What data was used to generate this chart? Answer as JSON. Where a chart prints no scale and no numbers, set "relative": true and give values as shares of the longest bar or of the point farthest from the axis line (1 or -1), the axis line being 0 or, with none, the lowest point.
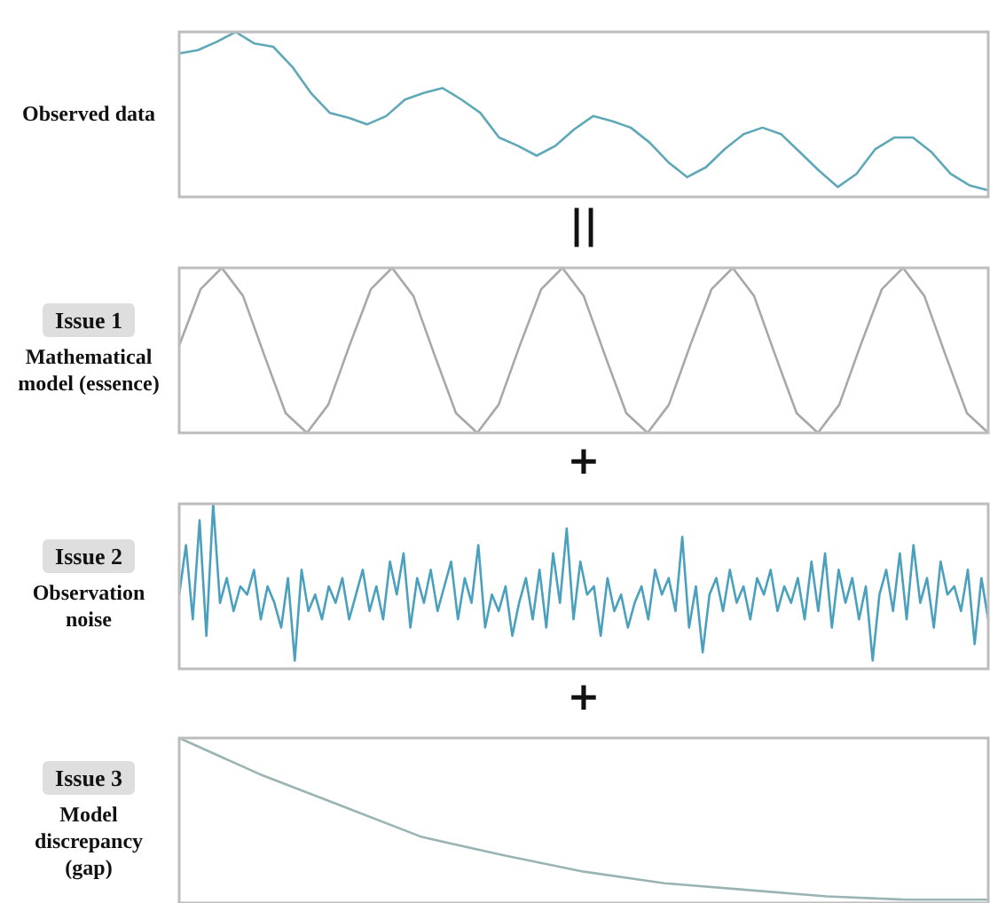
{
  "chart_data": [
    {
      "type": "line",
      "ylabel": "Observed data",
      "relative": true,
      "marker": "none",
      "annotations": [
        "||"
      ],
      "categories": [
        null,
        null,
        null,
        null,
        null,
        null,
        null,
        null,
        null,
        null,
        null,
        null,
        null,
        null,
        null,
        null,
        null,
        null,
        null,
        null,
        null,
        null,
        null,
        null,
        null,
        null,
        null,
        null,
        null,
        null,
        null,
        null,
        null,
        null,
        null,
        null,
        null,
        null,
        null,
        null,
        null,
        null,
        null,
        null
      ],
      "series": [
        {
          "color": "#5fa8b8",
          "values": [
            0.87,
            0.89,
            0.94,
            1,
            0.93,
            0.91,
            0.79,
            0.63,
            0.51,
            0.48,
            0.44,
            0.49,
            0.59,
            0.63,
            0.66,
            0.59,
            0.51,
            0.36,
            0.31,
            0.25,
            0.31,
            0.41,
            0.49,
            0.46,
            0.42,
            0.33,
            0.21,
            0.12,
            0.18,
            0.29,
            0.38,
            0.42,
            0.38,
            0.27,
            0.16,
            0.06,
            0.14,
            0.29,
            0.36,
            0.36,
            0.27,
            0.14,
            0.07,
            0.04
          ]
        }
      ]
    },
    {
      "type": "line",
      "title": "Issue 1",
      "ylabel": "Mathematical model (essence)",
      "relative": true,
      "marker": "none",
      "annotations": [
        "+"
      ],
      "categories": [
        null,
        null,
        null,
        null,
        null,
        null,
        null,
        null,
        null,
        null,
        null,
        null,
        null,
        null,
        null,
        null,
        null,
        null,
        null,
        null,
        null,
        null,
        null,
        null,
        null,
        null,
        null,
        null,
        null,
        null,
        null,
        null,
        null,
        null,
        null,
        null,
        null,
        null,
        null
      ],
      "series": [
        {
          "color": "#a8a8a8",
          "values": [
            0.53,
            0.87,
            1.0,
            0.83,
            0.47,
            0.12,
            0.0,
            0.17,
            0.53,
            0.87,
            1.0,
            0.83,
            0.47,
            0.12,
            0.0,
            0.17,
            0.53,
            0.87,
            1.0,
            0.83,
            0.47,
            0.12,
            0.0,
            0.17,
            0.53,
            0.87,
            1.0,
            0.83,
            0.47,
            0.12,
            0.0,
            0.17,
            0.53,
            0.87,
            1.0,
            0.83,
            0.47,
            0.12,
            0.0
          ]
        }
      ]
    },
    {
      "type": "line",
      "title": "Issue 2",
      "ylabel": "Observation noise",
      "relative": true,
      "marker": "none",
      "annotations": [
        "+"
      ],
      "categories": [
        null,
        null,
        null,
        null,
        null,
        null,
        null,
        null,
        null,
        null,
        null,
        null,
        null,
        null,
        null,
        null,
        null,
        null,
        null,
        null,
        null,
        null,
        null,
        null,
        null,
        null,
        null,
        null,
        null,
        null,
        null,
        null,
        null,
        null,
        null,
        null,
        null,
        null,
        null,
        null,
        null,
        null,
        null,
        null,
        null,
        null,
        null,
        null,
        null,
        null,
        null,
        null,
        null,
        null,
        null,
        null,
        null,
        null,
        null,
        null,
        null,
        null,
        null,
        null,
        null,
        null,
        null,
        null,
        null,
        null,
        null,
        null,
        null,
        null,
        null,
        null,
        null,
        null,
        null,
        null,
        null,
        null,
        null,
        null,
        null,
        null,
        null,
        null,
        null,
        null,
        null,
        null,
        null,
        null,
        null,
        null,
        null,
        null,
        null,
        null,
        null,
        null,
        null,
        null,
        null,
        null,
        null,
        null,
        null,
        null,
        null,
        null,
        null,
        null,
        null,
        null,
        null,
        null,
        null,
        null
      ],
      "series": [
        {
          "color": "#4aa0bd",
          "values": [
            0.45,
            0.75,
            0.3,
            0.9,
            0.2,
            1.0,
            0.4,
            0.55,
            0.35,
            0.5,
            0.45,
            0.6,
            0.3,
            0.5,
            0.4,
            0.25,
            0.55,
            0.05,
            0.6,
            0.35,
            0.45,
            0.3,
            0.5,
            0.4,
            0.55,
            0.3,
            0.45,
            0.6,
            0.35,
            0.5,
            0.3,
            0.65,
            0.45,
            0.7,
            0.25,
            0.55,
            0.4,
            0.6,
            0.35,
            0.5,
            0.65,
            0.3,
            0.55,
            0.4,
            0.75,
            0.25,
            0.45,
            0.35,
            0.5,
            0.2,
            0.4,
            0.55,
            0.3,
            0.6,
            0.25,
            0.7,
            0.4,
            0.85,
            0.3,
            0.65,
            0.45,
            0.5,
            0.2,
            0.55,
            0.35,
            0.45,
            0.25,
            0.4,
            0.5,
            0.3,
            0.6,
            0.45,
            0.55,
            0.35,
            0.8,
            0.25,
            0.5,
            0.1,
            0.45,
            0.55,
            0.35,
            0.6,
            0.4,
            0.5,
            0.3,
            0.55,
            0.45,
            0.6,
            0.35,
            0.5,
            0.4,
            0.55,
            0.3,
            0.65,
            0.35,
            0.7,
            0.25,
            0.6,
            0.4,
            0.55,
            0.3,
            0.5,
            0.05,
            0.45,
            0.6,
            0.35,
            0.7,
            0.3,
            0.75,
            0.4,
            0.55,
            0.25,
            0.65,
            0.45,
            0.5,
            0.35,
            0.6,
            0.15,
            0.55,
            0.3
          ]
        }
      ]
    },
    {
      "type": "line",
      "title": "Issue 3",
      "ylabel": "Model discrepancy (gap)",
      "relative": true,
      "marker": "none",
      "categories": [
        null,
        null,
        null,
        null,
        null,
        null,
        null,
        null,
        null,
        null,
        null
      ],
      "series": [
        {
          "color": "#9ab4b4",
          "values": [
            1,
            0.78,
            0.59,
            0.4,
            0.29,
            0.19,
            0.12,
            0.08,
            0.04,
            0.02,
            0.02
          ]
        }
      ]
    }
  ]
}
